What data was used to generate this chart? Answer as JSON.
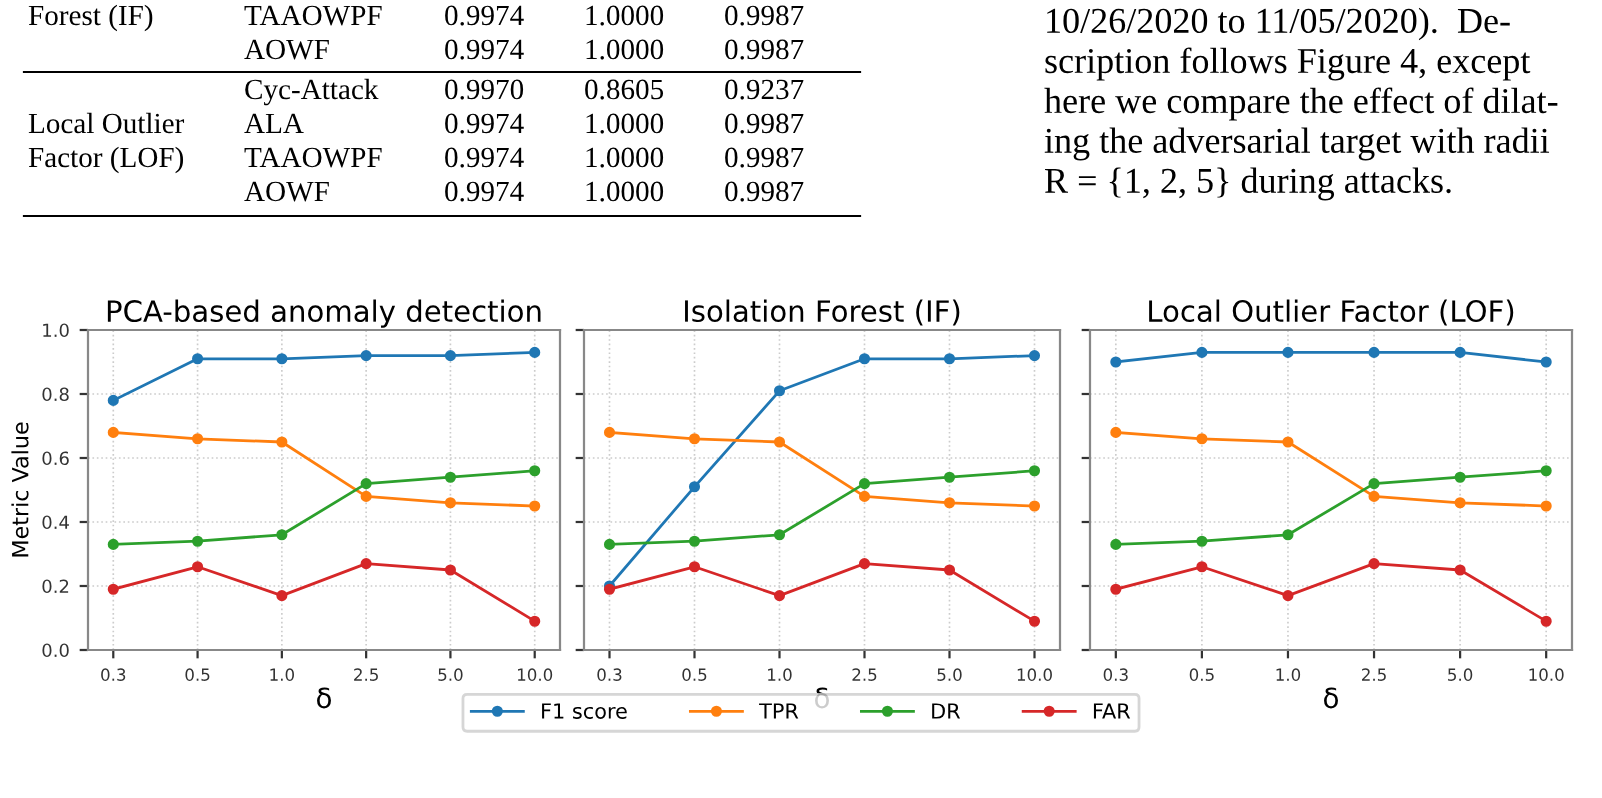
{
  "chart_data": [
    {
      "type": "other",
      "annotations": [
        "Forest (IF)",
        "TAAOWPF",
        "0.9974",
        "1.0000",
        "0.9987",
        "AOWF",
        "0.9974",
        "1.0000",
        "0.9987",
        "Cyc-Attack",
        "0.9970",
        "0.8605",
        "0.9237",
        "Local Outlier",
        "ALA",
        "0.9974",
        "1.0000",
        "0.9987",
        "Factor (LOF)",
        "TAAOWPF",
        "0.9974",
        "1.0000",
        "0.9987",
        "AOWF",
        "0.9974",
        "1.0000",
        "0.9987",
        "10/26/2020 to 11/05/2020).  De-",
        "scription follows Figure 4, except",
        "here we compare the effect of dilat-",
        "ing the adversarial target with radii",
        "R = {1, 2, 5} during attacks."
      ]
    },
    {
      "type": "line",
      "title": "PCA-based anomaly detection",
      "xlabel": "δ",
      "ylabel": "Metric Value",
      "categories": [
        "0.3",
        "0.5",
        "1.0",
        "2.5",
        "5.0",
        "10.0"
      ],
      "ylim": [
        0,
        1
      ],
      "yticks": [
        {
          "value": 0,
          "label": "0.0"
        },
        0.2,
        0.4,
        0.6,
        0.8,
        {
          "value": 1,
          "label": "1.0"
        }
      ],
      "grid": true,
      "marker": "circle",
      "line_style": "solid",
      "legend": "bottom",
      "series": [
        {
          "name": "F1 score",
          "color": "#1f77b4",
          "values": [
            0.78,
            0.91,
            0.91,
            0.92,
            0.92,
            0.93
          ]
        },
        {
          "name": "TPR",
          "color": "#ff7f0e",
          "values": [
            0.68,
            0.66,
            0.65,
            0.48,
            0.46,
            0.45
          ]
        },
        {
          "name": "DR",
          "color": "#2ca02c",
          "values": [
            0.33,
            0.34,
            0.36,
            0.52,
            0.54,
            0.56
          ]
        },
        {
          "name": "FAR",
          "color": "#d62728",
          "values": [
            0.19,
            0.26,
            0.17,
            0.27,
            0.25,
            0.09
          ]
        }
      ]
    },
    {
      "type": "line",
      "title": "Isolation Forest (IF)",
      "xlabel": "δ",
      "categories": [
        "0.3",
        "0.5",
        "1.0",
        "2.5",
        "5.0",
        "10.0"
      ],
      "ylim": [
        0,
        1
      ],
      "yticks": [
        0,
        0.2,
        0.4,
        0.6,
        0.8,
        1
      ],
      "tick_labels": "x",
      "grid": true,
      "marker": "circle",
      "line_style": "solid",
      "series": [
        {
          "color": "#1f77b4",
          "values": [
            0.2,
            0.51,
            0.81,
            0.91,
            0.91,
            0.92
          ]
        },
        {
          "color": "#ff7f0e",
          "values": [
            0.68,
            0.66,
            0.65,
            0.48,
            0.46,
            0.45
          ]
        },
        {
          "color": "#2ca02c",
          "values": [
            0.33,
            0.34,
            0.36,
            0.52,
            0.54,
            0.56
          ]
        },
        {
          "color": "#d62728",
          "values": [
            0.19,
            0.26,
            0.17,
            0.27,
            0.25,
            0.09
          ]
        }
      ]
    },
    {
      "type": "line",
      "title": "Local Outlier Factor (LOF)",
      "xlabel": "δ",
      "categories": [
        "0.3",
        "0.5",
        "1.0",
        "2.5",
        "5.0",
        "10.0"
      ],
      "ylim": [
        0,
        1
      ],
      "yticks": [
        0,
        0.2,
        0.4,
        0.6,
        0.8,
        1
      ],
      "tick_labels": "x",
      "grid": true,
      "marker": "circle",
      "line_style": "solid",
      "series": [
        {
          "color": "#1f77b4",
          "values": [
            0.9,
            0.93,
            0.93,
            0.93,
            0.93,
            0.9
          ]
        },
        {
          "color": "#ff7f0e",
          "values": [
            0.68,
            0.66,
            0.65,
            0.48,
            0.46,
            0.45
          ]
        },
        {
          "color": "#2ca02c",
          "values": [
            0.33,
            0.34,
            0.36,
            0.52,
            0.54,
            0.56
          ]
        },
        {
          "color": "#d62728",
          "values": [
            0.19,
            0.26,
            0.17,
            0.27,
            0.25,
            0.09
          ]
        }
      ]
    }
  ]
}
